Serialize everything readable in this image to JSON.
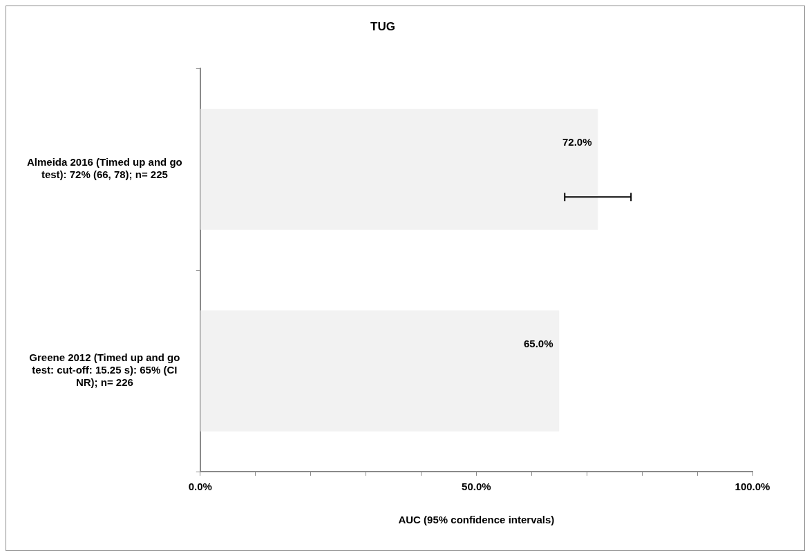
{
  "chart_data": {
    "type": "bar",
    "orientation": "horizontal",
    "title": "TUG",
    "xlabel": "AUC (95% confidence intervals)",
    "categories": [
      "Almeida 2016 (Timed up and go test): 72% (66, 78); n= 225",
      "Greene 2012 (Timed up and go test: cut-off: 15.25 s): 65% (CI NR); n= 226"
    ],
    "values": [
      72,
      65
    ],
    "color": "#f2f2f2",
    "errors": [
      [
        66,
        78
      ],
      null
    ],
    "value_labels": [
      "72.0%",
      "65.0%"
    ],
    "xlim": [
      0,
      100
    ],
    "xticks": [
      {
        "value": 0,
        "label": "0.0%"
      },
      {
        "value": 10,
        "label": null
      },
      {
        "value": 20,
        "label": null
      },
      {
        "value": 30,
        "label": null
      },
      {
        "value": 40,
        "label": null
      },
      {
        "value": 50,
        "label": "50.0%"
      },
      {
        "value": 60,
        "label": null
      },
      {
        "value": 70,
        "label": null
      },
      {
        "value": 80,
        "label": null
      },
      {
        "value": 90,
        "label": null
      },
      {
        "value": 100,
        "label": "100.0%"
      }
    ],
    "grid": false,
    "legend": false
  }
}
